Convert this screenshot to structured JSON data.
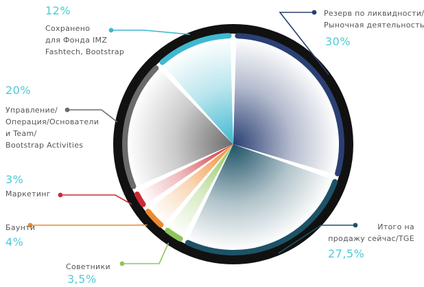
{
  "chart_data": {
    "type": "pie",
    "slices": [
      {
        "label_lines": [
          "Резерв по ликвидности/",
          "Рыночная деятельность"
        ],
        "percent_label": "30%",
        "value": 30,
        "color": "#2a3f73"
      },
      {
        "label_lines": [
          "Итого на",
          "продажу сейчас/TGE"
        ],
        "percent_label": "27,5%",
        "value": 27.5,
        "color": "#1d5266"
      },
      {
        "label_lines": [
          "Советники"
        ],
        "percent_label": "3,5%",
        "value": 3.5,
        "color": "#8dc55a"
      },
      {
        "label_lines": [
          "Баунти"
        ],
        "percent_label": "4%",
        "value": 4,
        "color": "#ee8a2e"
      },
      {
        "label_lines": [
          "Маркетинг"
        ],
        "percent_label": "3%",
        "value": 3,
        "color": "#cc2b35"
      },
      {
        "label_lines": [
          "Управление/",
          "Операция/Основатели",
          "и Team/",
          "Bootstrap Activities"
        ],
        "percent_label": "20%",
        "value": 20,
        "color": "#6b6b6b"
      },
      {
        "label_lines": [
          "Сохранено",
          "для Фонда IMZ",
          "Fashtech, Bootstrap"
        ],
        "percent_label": "12%",
        "value": 12,
        "color": "#3fb8cf"
      }
    ]
  }
}
